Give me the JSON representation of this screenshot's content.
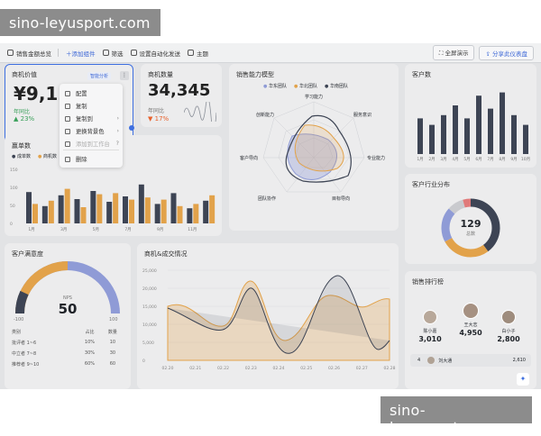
{
  "watermark": {
    "text": "sino-leyusport.com"
  },
  "toolbar": {
    "title": "销售金额总览",
    "items": [
      "添加组件",
      "筛选",
      "设置自动化发送",
      "主题"
    ],
    "right": [
      "全屏演示",
      "分享此仪表盘"
    ]
  },
  "card_value": {
    "title": "商机价值",
    "value": "¥9,125",
    "tag": "智能分析",
    "yoy_label": "年同比",
    "yoy": "23%"
  },
  "card_count": {
    "title": "商机数量",
    "value": "34,345",
    "yoy_label": "年同比",
    "yoy": "17%"
  },
  "context_menu": {
    "items": [
      "配置",
      "复制",
      "复制到",
      "更换背景色",
      "添加到工作台",
      "删除"
    ]
  },
  "radar": {
    "title": "销售能力模型",
    "legend": [
      "华东团队",
      "华北团队",
      "华南团队"
    ],
    "axes": [
      "学习能力",
      "服务意识",
      "专业能力",
      "目标导向",
      "团队协作",
      "客户导向",
      "创新能力"
    ]
  },
  "customers": {
    "title": "客户数",
    "months": [
      "1月",
      "2月",
      "3月",
      "4月",
      "5月",
      "6月",
      "7月",
      "8月",
      "9月",
      "10月"
    ],
    "values": [
      55,
      45,
      60,
      75,
      55,
      90,
      70,
      95,
      60,
      45
    ]
  },
  "deals": {
    "title": "赢单数",
    "legend": [
      "成单数",
      "商机数"
    ],
    "months": [
      "1月",
      "2月",
      "3月",
      "4月",
      "5月",
      "6月",
      "7月",
      "8月",
      "9月",
      "10月",
      "11月",
      "12月"
    ],
    "series": [
      {
        "name": "成单数",
        "color": "#3d4454",
        "values": [
          58,
          32,
          52,
          45,
          60,
          40,
          50,
          72,
          36,
          56,
          28,
          42
        ]
      },
      {
        "name": "商机数",
        "color": "#e2a24a",
        "values": [
          36,
          42,
          64,
          30,
          54,
          56,
          44,
          48,
          44,
          32,
          36,
          52
        ]
      }
    ],
    "yticks": [
      "150",
      "100",
      "50",
      "0"
    ]
  },
  "satisfaction": {
    "title": "客户满意度",
    "nps_label": "NPS",
    "nps": "50",
    "min": "-100",
    "max": "100",
    "header": [
      "类别",
      "占比",
      "数量"
    ],
    "rows": [
      [
        "批评者 1~6",
        "10%",
        "10"
      ],
      [
        "中立者 7~8",
        "30%",
        "30"
      ],
      [
        "推荐者 9~10",
        "60%",
        "60"
      ]
    ]
  },
  "trend": {
    "title": "商机&成交情况",
    "yticks": [
      "25,000",
      "20,000",
      "15,000",
      "10,000",
      "5,000",
      "0"
    ],
    "xticks": [
      "02.20",
      "02.21",
      "02.22",
      "02.23",
      "02.24",
      "02.25",
      "02.26",
      "02.27",
      "02.28"
    ]
  },
  "industry": {
    "title": "客户行业分布",
    "total": "129",
    "total_label": "总数"
  },
  "ranking": {
    "title": "销售排行榜",
    "podium": [
      {
        "name": "陈小嘉",
        "value": "3,010"
      },
      {
        "name": "王大志",
        "value": "4,950"
      },
      {
        "name": "白小子",
        "value": "2,800"
      }
    ],
    "row": {
      "rank": "4",
      "name": "刘大通",
      "value": "2,610"
    }
  },
  "colors": {
    "accent": "#3e6fe0",
    "dark": "#3d4454",
    "orange": "#e2a24a",
    "lilac": "#8f9bd6",
    "down": "#e8612c",
    "up": "#3aa05a"
  }
}
